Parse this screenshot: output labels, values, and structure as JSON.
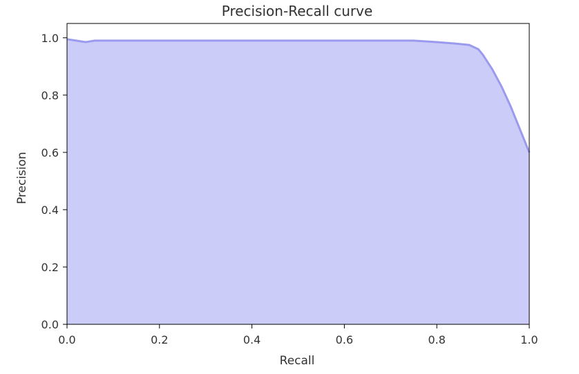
{
  "chart_data": {
    "type": "area",
    "title": "Precision-Recall curve",
    "xlabel": "Recall",
    "ylabel": "Precision",
    "xlim": [
      0.0,
      1.0
    ],
    "ylim": [
      0.0,
      1.05
    ],
    "xticks": [
      "0.0",
      "0.2",
      "0.4",
      "0.6",
      "0.8",
      "1.0"
    ],
    "yticks": [
      "0.0",
      "0.2",
      "0.4",
      "0.6",
      "0.8",
      "1.0"
    ],
    "grid": false,
    "legend": "none",
    "fill_color": "#ccccf9",
    "line_color": "#9a9aee",
    "series": [
      {
        "x": [
          0.0,
          0.02,
          0.04,
          0.06,
          0.1,
          0.2,
          0.3,
          0.4,
          0.5,
          0.6,
          0.7,
          0.75,
          0.8,
          0.84,
          0.87,
          0.89,
          0.9,
          0.92,
          0.94,
          0.96,
          0.98,
          1.0
        ],
        "y": [
          0.995,
          0.99,
          0.985,
          0.99,
          0.99,
          0.99,
          0.99,
          0.99,
          0.99,
          0.99,
          0.99,
          0.99,
          0.985,
          0.98,
          0.975,
          0.96,
          0.94,
          0.89,
          0.83,
          0.76,
          0.68,
          0.6
        ]
      }
    ]
  }
}
